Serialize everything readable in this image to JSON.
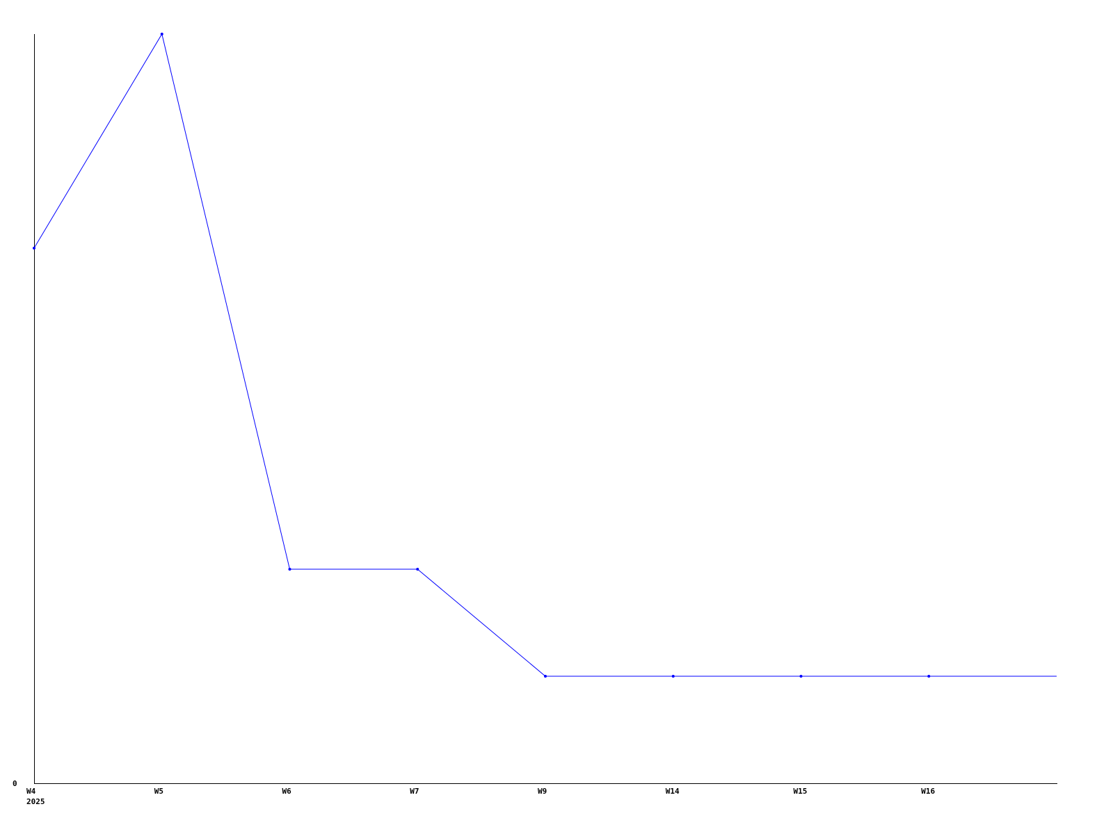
{
  "chart_data": {
    "type": "line",
    "title": "",
    "xlabel": "",
    "ylabel": "",
    "categories": [
      "W4",
      "W5",
      "W6",
      "W7",
      "W9",
      "W14",
      "W15",
      "W16",
      ""
    ],
    "year_label": "2025",
    "series": [
      {
        "values": [
          5,
          7,
          2,
          2,
          1,
          1,
          1,
          1,
          1
        ],
        "color": "#0000ff"
      }
    ],
    "ylim": [
      0,
      7
    ],
    "y_tick_labels": [
      "0"
    ],
    "grid": false,
    "legend": "none",
    "axis_color": "#000000"
  }
}
